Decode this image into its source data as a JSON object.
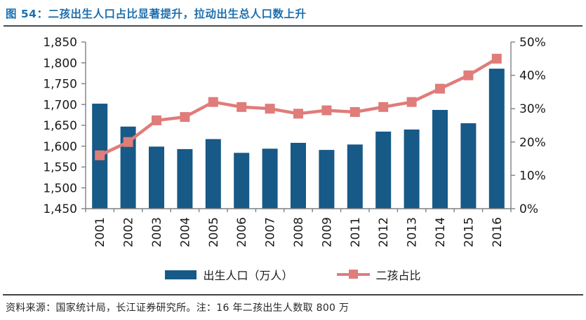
{
  "title": {
    "label": "图 54：二孩出生人口占比显著提升，拉动出生总人口数上升"
  },
  "footer": {
    "source_note": "资料来源：国家统计局，长江证券研究所。注：16 年二孩出生人数取 800 万"
  },
  "colors": {
    "title_blue": "#1d6fae",
    "bar_blue": "#175987",
    "line_salmon": "#e07c7a",
    "axis_gray": "#808080",
    "rule_dark": "#4a4a4a",
    "tick_text": "#1a1a1a"
  },
  "chart_data": {
    "type": "bar",
    "combo_with": "line",
    "title": "",
    "xlabel": "",
    "ylabel_left": "出生人口（万人）",
    "ylabel_right": "二孩占比",
    "grid": false,
    "legend_position": "bottom",
    "categories": [
      "2001",
      "2002",
      "2003",
      "2004",
      "2005",
      "2006",
      "2007",
      "2008",
      "2009",
      "2011",
      "2012",
      "2013",
      "2014",
      "2015",
      "2016"
    ],
    "series": [
      {
        "name": "出生人口（万人）",
        "chart_type": "bar",
        "axis": "left",
        "color": "#175987",
        "values": [
          1702,
          1647,
          1599,
          1593,
          1617,
          1584,
          1594,
          1608,
          1591,
          1604,
          1635,
          1640,
          1687,
          1655,
          1786
        ]
      },
      {
        "name": "二孩占比",
        "chart_type": "line",
        "axis": "right",
        "color": "#e07c7a",
        "marker": "square",
        "values_percent": [
          16,
          20,
          26.5,
          27.5,
          32,
          30.5,
          30,
          28.5,
          29.5,
          29,
          30.5,
          32,
          36,
          40,
          45
        ]
      }
    ],
    "left_axis": {
      "min": 1450,
      "max": 1850,
      "step": 50,
      "tick_values": [
        1850,
        1800,
        1750,
        1700,
        1650,
        1600,
        1550,
        1500,
        1450
      ],
      "tick_labels": [
        "1,850",
        "1,800",
        "1,750",
        "1,700",
        "1,650",
        "1,600",
        "1,550",
        "1,500",
        "1,450"
      ]
    },
    "right_axis": {
      "min": 0,
      "max": 50,
      "step": 10,
      "tick_values": [
        50,
        40,
        30,
        20,
        10,
        0
      ],
      "tick_labels": [
        "50%",
        "40%",
        "30%",
        "20%",
        "10%",
        "0%"
      ]
    }
  }
}
